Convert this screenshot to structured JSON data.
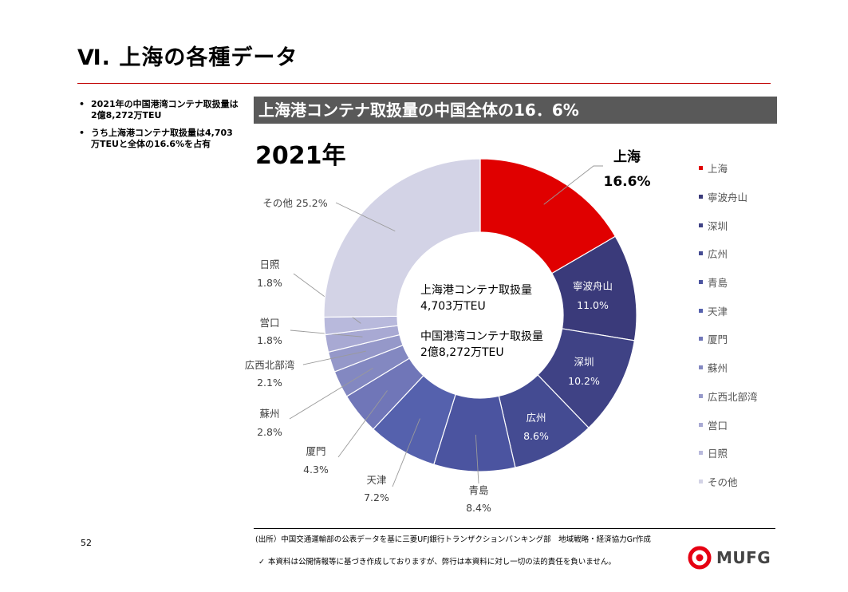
{
  "page": {
    "title": "Ⅵ. 上海の各種データ",
    "number": "52"
  },
  "bullets": [
    "2021年の中国港湾コンテナ取扱量は2億8,272万TEU",
    "うち上海港コンテナ取扱量は4,703万TEUと全体の16.6%を占有"
  ],
  "banner": "上海港コンテナ取扱量の中国全体の16．6%",
  "colors": {
    "accent": "#c00000",
    "logo_red": "#e60012"
  },
  "chart_data": {
    "type": "pie",
    "title": "2021年",
    "center_text": [
      "上海港コンテナ取扱量",
      "4,703万TEU",
      "中国港湾コンテナ取扱量",
      "2億8,272万TEU"
    ],
    "unit": "%",
    "slices": [
      {
        "label": "上海",
        "value": 16.6,
        "value_text": "16.6%",
        "color": "#e00000"
      },
      {
        "label": "寧波舟山",
        "value": 11.0,
        "value_text": "11.0%",
        "color": "#3a3a7a"
      },
      {
        "label": "深圳",
        "value": 10.2,
        "value_text": "10.2%",
        "color": "#3f4285"
      },
      {
        "label": "広州",
        "value": 8.6,
        "value_text": "8.6%",
        "color": "#444b92"
      },
      {
        "label": "青島",
        "value": 8.4,
        "value_text": "8.4%",
        "color": "#4b54a0"
      },
      {
        "label": "天津",
        "value": 7.2,
        "value_text": "7.2%",
        "color": "#5561ad"
      },
      {
        "label": "厦門",
        "value": 4.3,
        "value_text": "4.3%",
        "color": "#7076b8"
      },
      {
        "label": "蘇州",
        "value": 2.8,
        "value_text": "2.8%",
        "color": "#8388c1"
      },
      {
        "label": "広西北部湾",
        "value": 2.1,
        "value_text": "2.1%",
        "color": "#9598c9"
      },
      {
        "label": "営口",
        "value": 1.8,
        "value_text": "1.8%",
        "color": "#a8a9d3"
      },
      {
        "label": "日照",
        "value": 1.8,
        "value_text": "1.8%",
        "color": "#b8b9dc"
      },
      {
        "label": "その他",
        "value": 25.2,
        "value_text": "25.2%",
        "color": "#d3d3e6"
      }
    ],
    "legend_position": "right"
  },
  "footer": {
    "source": "(出所）中国交通運輸部の公表データを基に三菱UFJ銀行トランザクションバンキング部　地域戦略・経済協力Gr作成",
    "disclaimer_mark": "✓",
    "disclaimer": "本資料は公開情報等に基づき作成しておりますが、弊行は本資料に対し一切の法的責任を負いません。",
    "logo_text": "MUFG"
  }
}
